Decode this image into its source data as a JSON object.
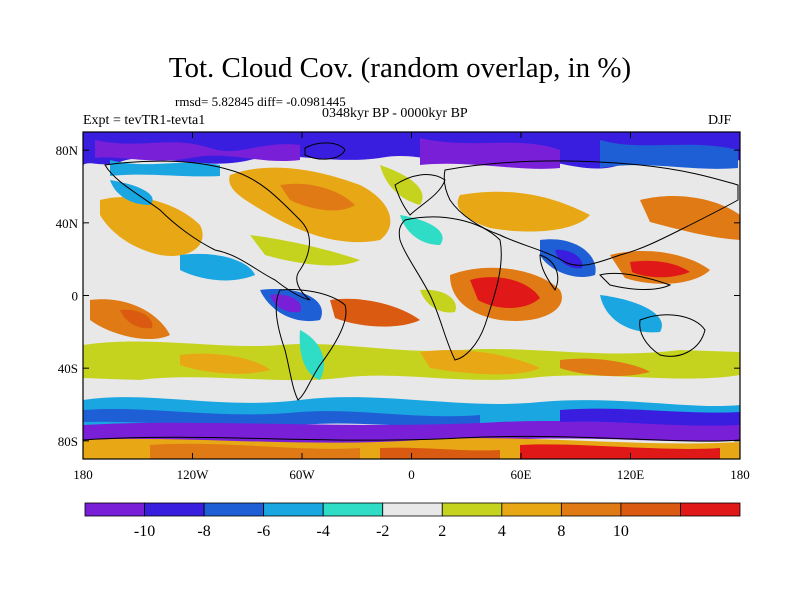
{
  "title": "Tot. Cloud Cov. (random overlap, in %)",
  "stats_text": "rmsd= 5.82845 diff= -0.0981445",
  "experiment_text": "Expt = tevTR1-tevta1",
  "period_text": "0348kyr BP - 0000kyr BP",
  "season_text": "DJF",
  "lat_ticks": [
    {
      "label": "80N",
      "value": 80
    },
    {
      "label": "40N",
      "value": 40
    },
    {
      "label": "0",
      "value": 0
    },
    {
      "label": "40S",
      "value": -40
    },
    {
      "label": "80S",
      "value": -80
    }
  ],
  "lon_ticks": [
    {
      "label": "180",
      "value": -180
    },
    {
      "label": "120W",
      "value": -120
    },
    {
      "label": "60W",
      "value": -60
    },
    {
      "label": "0",
      "value": 0
    },
    {
      "label": "60E",
      "value": 60
    },
    {
      "label": "120E",
      "value": 120
    },
    {
      "label": "180",
      "value": 180
    }
  ],
  "colorbar": {
    "colors": [
      "#7a1fd8",
      "#3a1ee0",
      "#1e5fd6",
      "#1aa6e0",
      "#2fdcc6",
      "#e8e8e8",
      "#c6d31e",
      "#e8a816",
      "#e07a14",
      "#d95a10",
      "#e01818"
    ],
    "labels": [
      "-10",
      "-8",
      "-6",
      "-4",
      "-2",
      "2",
      "4",
      "8",
      "10"
    ]
  },
  "colors": {
    "land_outline": "#000000",
    "background": "#e8e8e8"
  }
}
